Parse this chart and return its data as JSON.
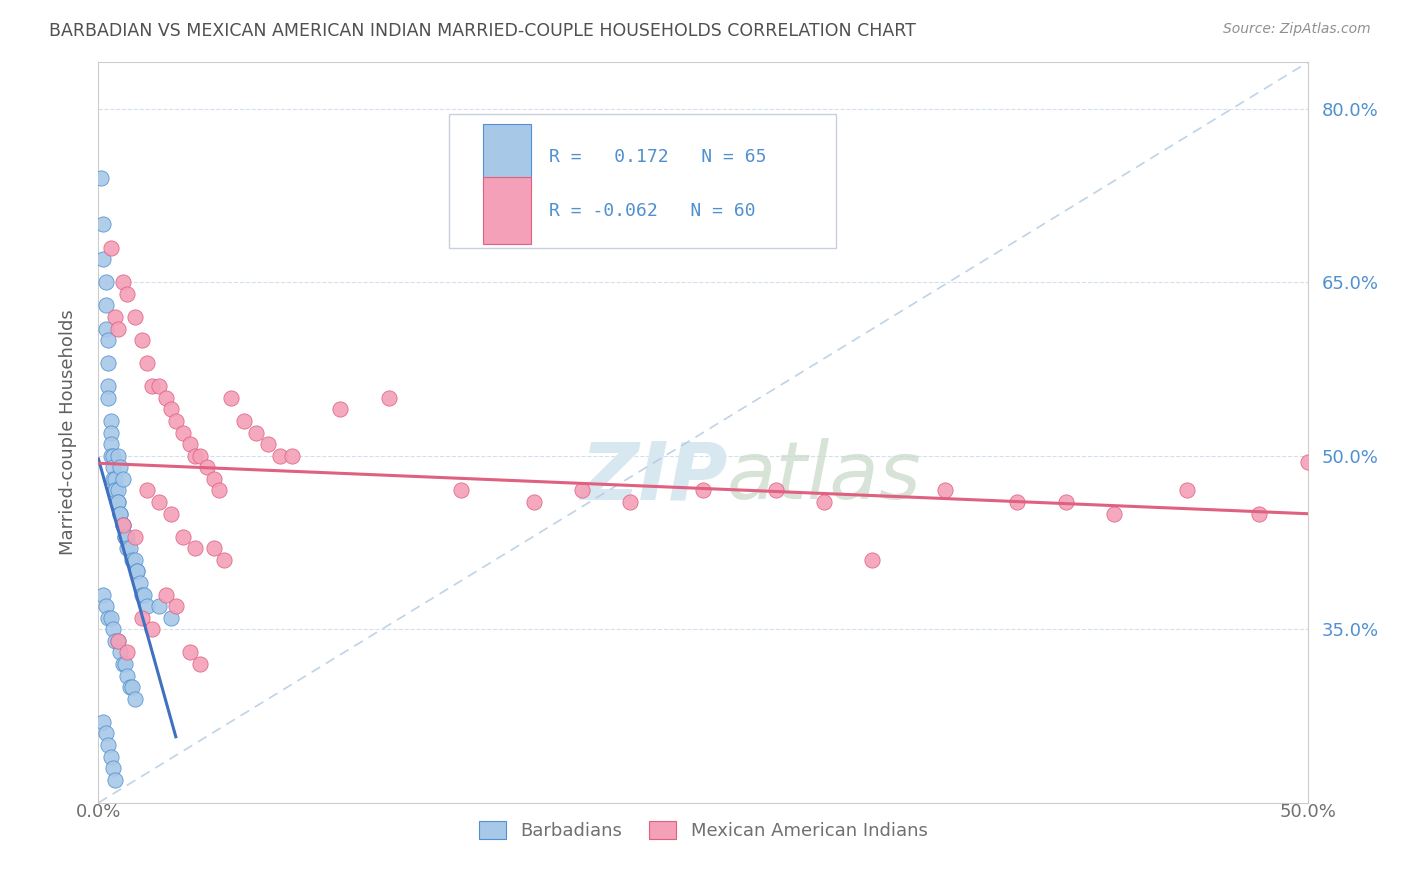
{
  "title": "BARBADIAN VS MEXICAN AMERICAN INDIAN MARRIED-COUPLE HOUSEHOLDS CORRELATION CHART",
  "source": "Source: ZipAtlas.com",
  "ylabel": "Married-couple Households",
  "xlim": [
    0.0,
    0.5
  ],
  "ylim": [
    0.2,
    0.84
  ],
  "yticks": [
    0.35,
    0.5,
    0.65,
    0.8
  ],
  "ytick_labels": [
    "35.0%",
    "50.0%",
    "65.0%",
    "80.0%"
  ],
  "color_blue": "#a8c8e8",
  "color_pink": "#f4a0b8",
  "color_blue_dark": "#5090d0",
  "color_pink_dark": "#e06080",
  "line_blue": "#4070c0",
  "line_pink": "#e06080",
  "line_dashed_color": "#b0c8e0",
  "watermark_color": "#d8e8f0",
  "background_color": "#ffffff",
  "title_color": "#505050",
  "axis_color": "#cccccc",
  "tick_label_color": "#5090d0",
  "blue_scatter_x": [
    0.001,
    0.002,
    0.002,
    0.003,
    0.003,
    0.003,
    0.004,
    0.004,
    0.004,
    0.004,
    0.005,
    0.005,
    0.005,
    0.005,
    0.006,
    0.006,
    0.006,
    0.007,
    0.007,
    0.007,
    0.008,
    0.008,
    0.008,
    0.009,
    0.009,
    0.01,
    0.01,
    0.011,
    0.011,
    0.012,
    0.012,
    0.013,
    0.014,
    0.015,
    0.016,
    0.016,
    0.017,
    0.018,
    0.019,
    0.02,
    0.002,
    0.003,
    0.004,
    0.005,
    0.006,
    0.007,
    0.008,
    0.009,
    0.01,
    0.011,
    0.012,
    0.013,
    0.014,
    0.015,
    0.002,
    0.003,
    0.004,
    0.005,
    0.006,
    0.007,
    0.008,
    0.009,
    0.025,
    0.03,
    0.01
  ],
  "blue_scatter_y": [
    0.74,
    0.7,
    0.67,
    0.65,
    0.63,
    0.61,
    0.6,
    0.58,
    0.56,
    0.55,
    0.53,
    0.52,
    0.51,
    0.5,
    0.5,
    0.49,
    0.48,
    0.48,
    0.47,
    0.47,
    0.47,
    0.46,
    0.46,
    0.45,
    0.45,
    0.44,
    0.44,
    0.43,
    0.43,
    0.43,
    0.42,
    0.42,
    0.41,
    0.41,
    0.4,
    0.4,
    0.39,
    0.38,
    0.38,
    0.37,
    0.38,
    0.37,
    0.36,
    0.36,
    0.35,
    0.34,
    0.34,
    0.33,
    0.32,
    0.32,
    0.31,
    0.3,
    0.3,
    0.29,
    0.27,
    0.26,
    0.25,
    0.24,
    0.23,
    0.22,
    0.5,
    0.49,
    0.37,
    0.36,
    0.48
  ],
  "pink_scatter_x": [
    0.005,
    0.007,
    0.008,
    0.01,
    0.012,
    0.015,
    0.018,
    0.02,
    0.022,
    0.025,
    0.028,
    0.03,
    0.032,
    0.035,
    0.038,
    0.04,
    0.042,
    0.045,
    0.048,
    0.05,
    0.055,
    0.06,
    0.065,
    0.07,
    0.075,
    0.08,
    0.01,
    0.015,
    0.02,
    0.025,
    0.03,
    0.035,
    0.04,
    0.1,
    0.12,
    0.15,
    0.18,
    0.2,
    0.22,
    0.25,
    0.28,
    0.3,
    0.32,
    0.35,
    0.38,
    0.4,
    0.42,
    0.45,
    0.48,
    0.5,
    0.008,
    0.012,
    0.018,
    0.022,
    0.028,
    0.032,
    0.038,
    0.042,
    0.048,
    0.052
  ],
  "pink_scatter_y": [
    0.68,
    0.62,
    0.61,
    0.65,
    0.64,
    0.62,
    0.6,
    0.58,
    0.56,
    0.56,
    0.55,
    0.54,
    0.53,
    0.52,
    0.51,
    0.5,
    0.5,
    0.49,
    0.48,
    0.47,
    0.55,
    0.53,
    0.52,
    0.51,
    0.5,
    0.5,
    0.44,
    0.43,
    0.47,
    0.46,
    0.45,
    0.43,
    0.42,
    0.54,
    0.55,
    0.47,
    0.46,
    0.47,
    0.46,
    0.47,
    0.47,
    0.46,
    0.41,
    0.47,
    0.46,
    0.46,
    0.45,
    0.47,
    0.45,
    0.495,
    0.34,
    0.33,
    0.36,
    0.35,
    0.38,
    0.37,
    0.33,
    0.32,
    0.42,
    0.41
  ]
}
